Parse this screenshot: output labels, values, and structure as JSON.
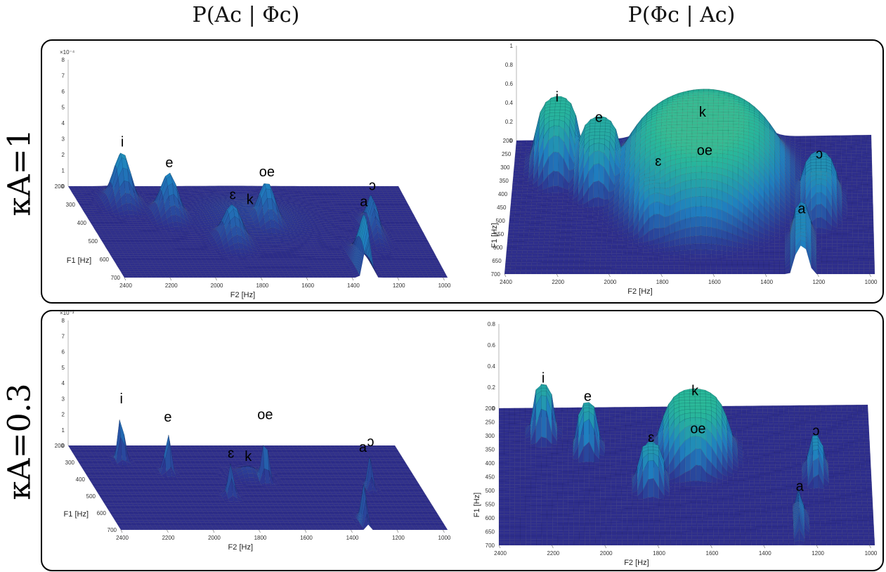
{
  "column_titles": [
    "P(Aᴄ | Φᴄ)",
    "P(Φᴄ | Aᴄ)"
  ],
  "row_labels": [
    "κA=1",
    "κA=0.3"
  ],
  "colors": {
    "floor": "#2e2e8c",
    "low": "#1f7fc0",
    "mid": "#28b89a",
    "high": "#f2e33a"
  },
  "chart_data": [
    {
      "type": "surface3d",
      "panel": "kA=1 likelihood",
      "xlabel": "F2 [Hz]",
      "ylabel": "F1 [Hz]",
      "xticks": [
        "2400",
        "2200",
        "2000",
        "1800",
        "1600",
        "1400",
        "1200",
        "1000"
      ],
      "yticks": [
        "200",
        "300",
        "400",
        "500",
        "600",
        "700"
      ],
      "zticks": [
        "0",
        "1",
        "2",
        "3",
        "4",
        "5",
        "6",
        "7",
        "8"
      ],
      "zexp": "×10⁻⁴",
      "zmax": 8,
      "peaks": [
        {
          "label": "i",
          "f2": 2210,
          "f1": 290,
          "height": 3.2,
          "sx": 70,
          "sy": 60
        },
        {
          "label": "e",
          "f2": 2040,
          "f1": 360,
          "height": 2.7,
          "sx": 70,
          "sy": 60
        },
        {
          "label": "ɛ",
          "f2": 1830,
          "f1": 500,
          "height": 2.3,
          "sx": 75,
          "sy": 65
        },
        {
          "label": "k",
          "f2": 1700,
          "f1": 380,
          "height": 0.6,
          "sx": 260,
          "sy": 140
        },
        {
          "label": "oe",
          "f2": 1640,
          "f1": 410,
          "height": 2.7,
          "sx": 70,
          "sy": 60
        },
        {
          "label": "a",
          "f2": 1330,
          "f1": 660,
          "height": 3.7,
          "sx": 28,
          "sy": 110
        },
        {
          "label": "ɔ",
          "f2": 1200,
          "f1": 450,
          "height": 2.3,
          "sx": 40,
          "sy": 80
        }
      ]
    },
    {
      "type": "surface3d",
      "panel": "kA=1 posterior",
      "xlabel": "F2 [Hz]",
      "ylabel": "F1 [Hz]",
      "xticks": [
        "2400",
        "2200",
        "2000",
        "1800",
        "1600",
        "1400",
        "1200",
        "1000"
      ],
      "yticks": [
        "200",
        "250",
        "300",
        "350",
        "400",
        "450",
        "500",
        "550",
        "600",
        "650",
        "700"
      ],
      "zticks": [
        "0",
        "0.2",
        "0.4",
        "0.6",
        "0.8",
        "1"
      ],
      "zexp": "",
      "zmax": 1,
      "peaks": [
        {
          "label": "i",
          "f2": 2230,
          "f1": 290,
          "height": 0.6,
          "sx": 95,
          "sy": 85
        },
        {
          "label": "e",
          "f2": 2060,
          "f1": 350,
          "height": 0.55,
          "sx": 95,
          "sy": 85
        },
        {
          "label": "ɛ",
          "f2": 1820,
          "f1": 480,
          "height": 0.45,
          "sx": 110,
          "sy": 95
        },
        {
          "label": "k",
          "f2": 1650,
          "f1": 370,
          "height": 0.65,
          "sx": 330,
          "sy": 210
        },
        {
          "label": "oe",
          "f2": 1640,
          "f1": 430,
          "height": 0.42,
          "sx": 100,
          "sy": 90
        },
        {
          "label": "a",
          "f2": 1260,
          "f1": 620,
          "height": 0.35,
          "sx": 45,
          "sy": 110
        },
        {
          "label": "ɔ",
          "f2": 1190,
          "f1": 440,
          "height": 0.4,
          "sx": 80,
          "sy": 90
        }
      ]
    },
    {
      "type": "surface3d",
      "panel": "kA=0.3 likelihood",
      "xlabel": "F2 [Hz]",
      "ylabel": "F1 [Hz]",
      "xticks": [
        "2400",
        "2200",
        "2000",
        "1800",
        "1600",
        "1400",
        "1200",
        "1000"
      ],
      "yticks": [
        "200",
        "300",
        "400",
        "500",
        "600",
        "700"
      ],
      "zticks": [
        "0",
        "1",
        "2",
        "3",
        "4",
        "5",
        "6",
        "7",
        "8"
      ],
      "zexp": "×10⁻³",
      "zmax": 8,
      "peaks": [
        {
          "label": "i",
          "f2": 2210,
          "f1": 290,
          "height": 3.3,
          "sx": 22,
          "sy": 20
        },
        {
          "label": "e",
          "f2": 2040,
          "f1": 360,
          "height": 2.9,
          "sx": 22,
          "sy": 20
        },
        {
          "label": "ɛ",
          "f2": 1830,
          "f1": 500,
          "height": 2.1,
          "sx": 24,
          "sy": 22
        },
        {
          "label": "k",
          "f2": 1700,
          "f1": 380,
          "height": 0.6,
          "sx": 80,
          "sy": 45
        },
        {
          "label": "oe",
          "f2": 1640,
          "f1": 410,
          "height": 3.6,
          "sx": 20,
          "sy": 18
        },
        {
          "label": "a",
          "f2": 1330,
          "f1": 660,
          "height": 4.2,
          "sx": 10,
          "sy": 40
        },
        {
          "label": "ɔ",
          "f2": 1200,
          "f1": 450,
          "height": 2.3,
          "sx": 14,
          "sy": 25
        }
      ]
    },
    {
      "type": "surface3d",
      "panel": "kA=0.3 posterior",
      "xlabel": "F2 [Hz]",
      "ylabel": "F1 [Hz]",
      "xticks": [
        "2400",
        "2200",
        "2000",
        "1800",
        "1600",
        "1400",
        "1200",
        "1000"
      ],
      "yticks": [
        "200",
        "250",
        "300",
        "350",
        "400",
        "450",
        "500",
        "550",
        "600",
        "650",
        "700"
      ],
      "zticks": [
        "0",
        "0.2",
        "0.4",
        "0.6",
        "0.8"
      ],
      "zexp": "",
      "zmax": 0.8,
      "peaks": [
        {
          "label": "i",
          "f2": 2230,
          "f1": 290,
          "height": 0.42,
          "sx": 45,
          "sy": 40
        },
        {
          "label": "e",
          "f2": 2060,
          "f1": 350,
          "height": 0.4,
          "sx": 45,
          "sy": 40
        },
        {
          "label": "ɛ",
          "f2": 1820,
          "f1": 480,
          "height": 0.35,
          "sx": 55,
          "sy": 45
        },
        {
          "label": "k",
          "f2": 1650,
          "f1": 370,
          "height": 0.5,
          "sx": 140,
          "sy": 90
        },
        {
          "label": "oe",
          "f2": 1640,
          "f1": 430,
          "height": 0.3,
          "sx": 40,
          "sy": 40
        },
        {
          "label": "a",
          "f2": 1260,
          "f1": 620,
          "height": 0.25,
          "sx": 18,
          "sy": 60
        },
        {
          "label": "ɔ",
          "f2": 1190,
          "f1": 440,
          "height": 0.3,
          "sx": 35,
          "sy": 50
        }
      ]
    }
  ]
}
